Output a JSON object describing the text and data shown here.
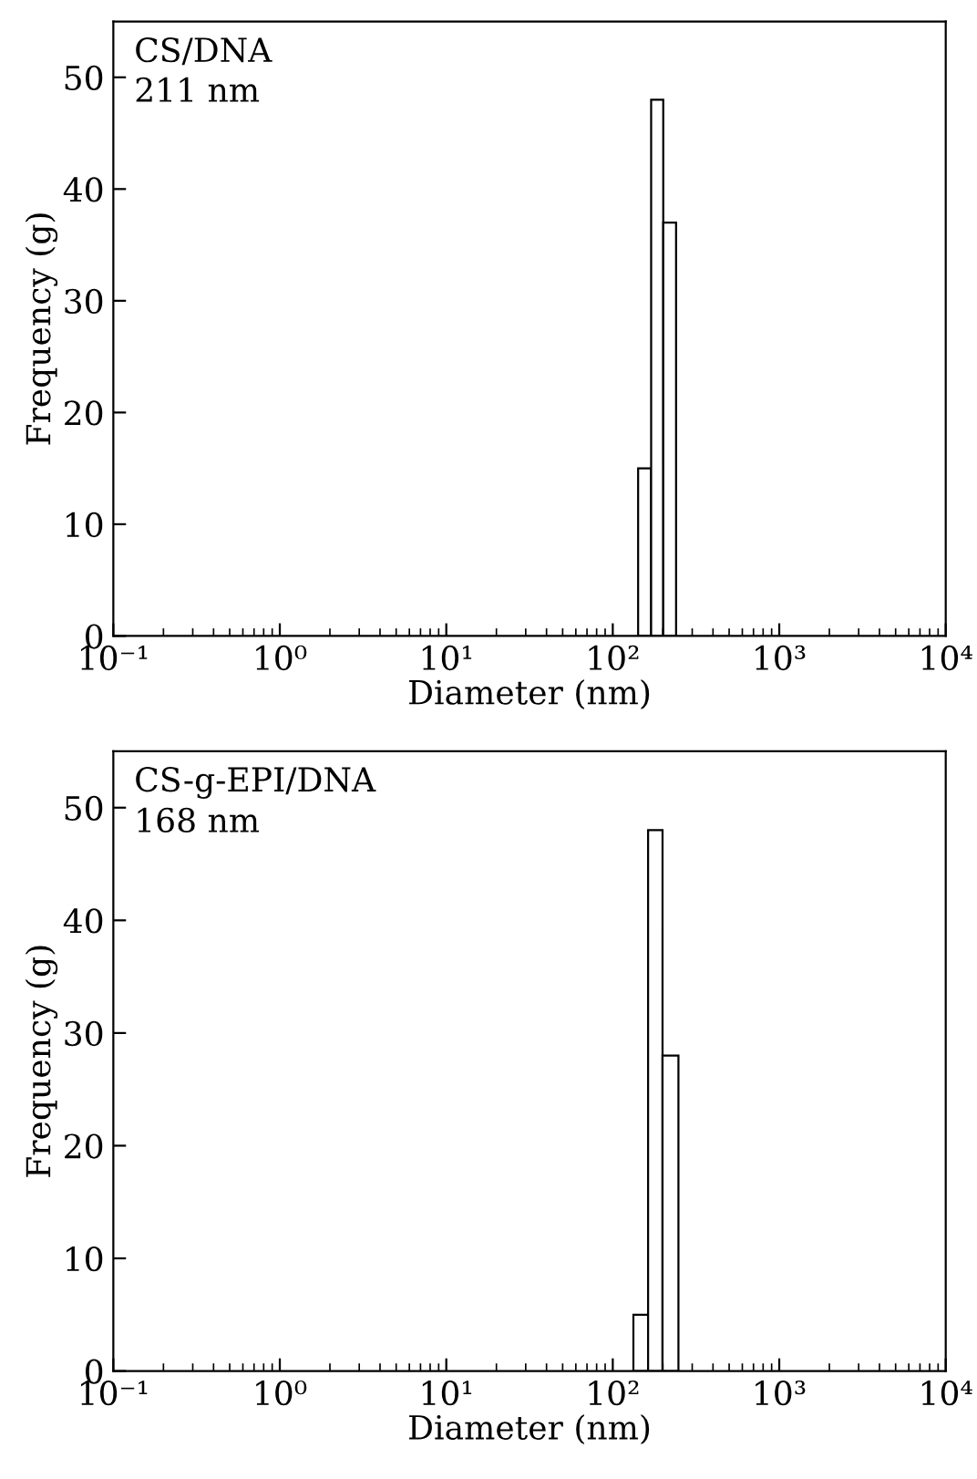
{
  "chart_data": [
    {
      "type": "histogram",
      "xlabel": "Diameter (nm)",
      "ylabel": "Frequency (g)",
      "annotations": [
        "CS/DNA",
        "211 nm"
      ],
      "bins": [
        142,
        170,
        201,
        240
      ],
      "values": [
        15,
        48,
        37
      ],
      "color": "#ffffff",
      "log": "x",
      "xlim": [
        0.1,
        10000
      ],
      "xticks": [
        {
          "value": 0.1,
          "label": "10⁻¹"
        },
        {
          "value": 1,
          "label": "10⁰"
        },
        {
          "value": 10,
          "label": "10¹"
        },
        {
          "value": 100,
          "label": "10²"
        },
        {
          "value": 1000,
          "label": "10³"
        },
        {
          "value": 10000,
          "label": "10⁴"
        }
      ],
      "ylim": [
        0,
        55
      ],
      "yticks": [
        0,
        10,
        20,
        30,
        40,
        50
      ]
    },
    {
      "type": "histogram",
      "xlabel": "Diameter (nm)",
      "ylabel": "Frequency (g)",
      "annotations": [
        "CS-g-EPI/DNA",
        "168 nm"
      ],
      "bins": [
        133,
        163,
        199,
        248
      ],
      "values": [
        5,
        48,
        28
      ],
      "color": "#ffffff",
      "log": "x",
      "xlim": [
        0.1,
        10000
      ],
      "xticks": [
        {
          "value": 0.1,
          "label": "10⁻¹"
        },
        {
          "value": 1,
          "label": "10⁰"
        },
        {
          "value": 10,
          "label": "10¹"
        },
        {
          "value": 100,
          "label": "10²"
        },
        {
          "value": 1000,
          "label": "10³"
        },
        {
          "value": 10000,
          "label": "10⁴"
        }
      ],
      "ylim": [
        0,
        55
      ],
      "yticks": [
        0,
        10,
        20,
        30,
        40,
        50
      ]
    }
  ]
}
